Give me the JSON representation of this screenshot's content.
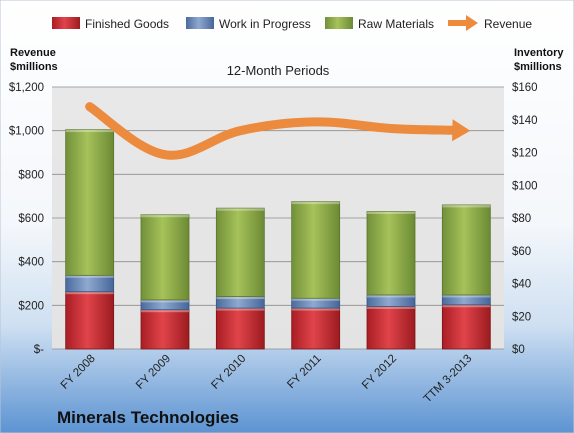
{
  "chart_data": {
    "type": "bar",
    "stacked": true,
    "title": "12-Month Periods",
    "company": "Minerals Technologies",
    "categories": [
      "FY 2008",
      "FY 2009",
      "FY 2010",
      "FY 2011",
      "FY 2012",
      "TTM 3-2013"
    ],
    "left_axis": {
      "label_line1": "Revenue",
      "label_line2": "$millions",
      "min": 0,
      "max": 1200,
      "step": 200,
      "ticks": [
        "$-",
        "$200",
        "$400",
        "$600",
        "$800",
        "$1,000",
        "$1,200"
      ]
    },
    "right_axis": {
      "label_line1": "Inventory",
      "label_line2": "$millions",
      "min": 0,
      "max": 160,
      "step": 20,
      "ticks": [
        "$0",
        "$20",
        "$40",
        "$60",
        "$80",
        "$100",
        "$120",
        "$140",
        "$160"
      ]
    },
    "series": [
      {
        "name": "Finished Goods",
        "axis": "right",
        "kind": "bar",
        "color": "#c0272d",
        "values": [
          35,
          24,
          25,
          25,
          26,
          27
        ]
      },
      {
        "name": "Work in Progress",
        "axis": "right",
        "kind": "bar",
        "color": "#5b7fb5",
        "values": [
          10,
          6,
          7,
          6,
          7,
          6
        ]
      },
      {
        "name": "Raw Materials",
        "axis": "right",
        "kind": "bar",
        "color": "#8aa83e",
        "values": [
          89,
          52,
          54,
          59,
          51,
          55
        ]
      },
      {
        "name": "Revenue",
        "axis": "left",
        "kind": "line",
        "color": "#ec8a3e",
        "values": [
          1110,
          890,
          1000,
          1040,
          1010,
          1000
        ]
      }
    ],
    "legend_position": "top",
    "grid": true
  }
}
